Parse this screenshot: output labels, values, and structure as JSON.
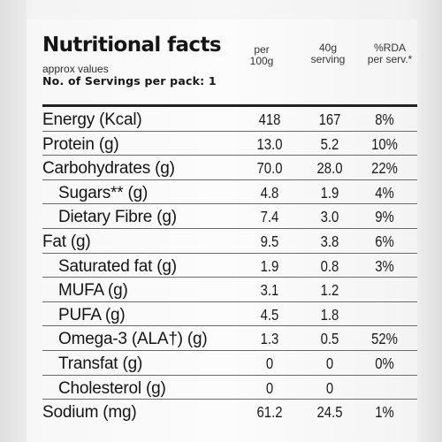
{
  "label": {
    "title": "Nutritional facts",
    "subtitle": "approx values",
    "servings": "No. of Servings per pack: 1",
    "columns": [
      {
        "line1": "per",
        "line2": "100g"
      },
      {
        "line1": "40g",
        "line2": "serving"
      },
      {
        "line1": "%RDA",
        "line2": "per serv.*"
      }
    ]
  },
  "rows": [
    {
      "name": "Energy (Kcal)",
      "per100g": "418",
      "serving": "167",
      "rda": "8%",
      "indent": false
    },
    {
      "name": "Protein (g)",
      "per100g": "13.0",
      "serving": "5.2",
      "rda": "10%",
      "indent": false
    },
    {
      "name": "Carbohydrates (g)",
      "per100g": "70.0",
      "serving": "28.0",
      "rda": "22%",
      "indent": false
    },
    {
      "name": "Sugars** (g)",
      "per100g": "4.8",
      "serving": "1.9",
      "rda": "4%",
      "indent": true
    },
    {
      "name": "Dietary Fibre (g)",
      "per100g": "7.4",
      "serving": "3.0",
      "rda": "9%",
      "indent": true
    },
    {
      "name": "Fat (g)",
      "per100g": "9.5",
      "serving": "3.8",
      "rda": "6%",
      "indent": false
    },
    {
      "name": "Saturated fat (g)",
      "per100g": "1.9",
      "serving": "0.8",
      "rda": "3%",
      "indent": true
    },
    {
      "name": "MUFA (g)",
      "per100g": "3.1",
      "serving": "1.2",
      "rda": "",
      "indent": true
    },
    {
      "name": "PUFA (g)",
      "per100g": "4.5",
      "serving": "1.8",
      "rda": "",
      "indent": true
    },
    {
      "name": "Omega-3 (ALA†) (g)",
      "per100g": "1.3",
      "serving": "0.5",
      "rda": "52%",
      "indent": true
    },
    {
      "name": "Transfat (g)",
      "per100g": "0",
      "serving": "0",
      "rda": "0%",
      "indent": true
    },
    {
      "name": "Cholesterol (g)",
      "per100g": "0",
      "serving": "0",
      "rda": "",
      "indent": true
    },
    {
      "name": "Sodium (mg)",
      "per100g": "61.2",
      "serving": "24.5",
      "rda": "1%",
      "indent": false
    }
  ]
}
